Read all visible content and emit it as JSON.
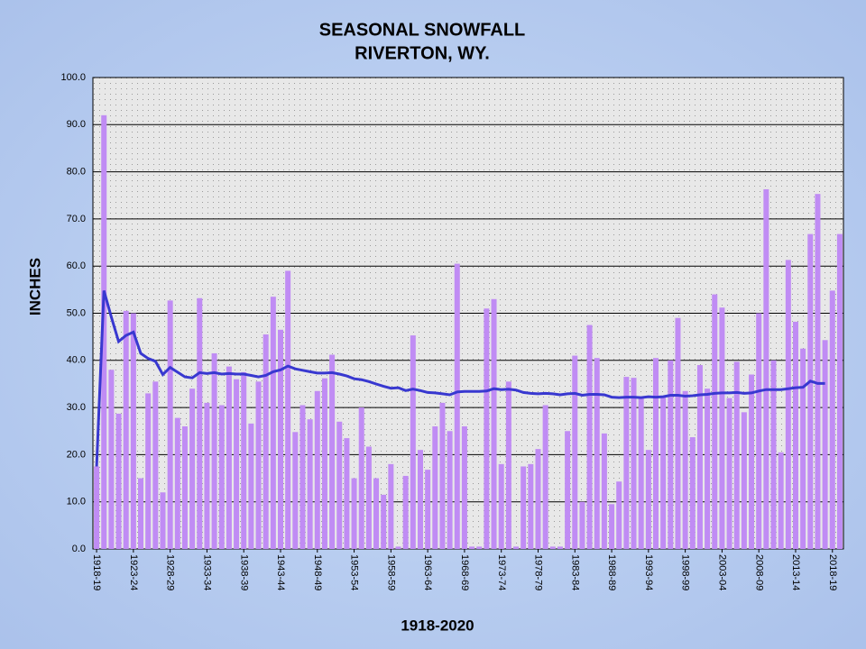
{
  "chart_data": {
    "type": "bar",
    "title": "SEASONAL SNOWFALL",
    "subtitle": "RIVERTON, WY.",
    "y_label": "INCHES",
    "x_label": "1918-2020",
    "categories": [
      "1918-19",
      null,
      null,
      null,
      null,
      "1923-24",
      null,
      null,
      null,
      null,
      "1928-29",
      null,
      null,
      null,
      null,
      "1933-34",
      null,
      null,
      null,
      null,
      "1938-39",
      null,
      null,
      null,
      null,
      "1943-44",
      null,
      null,
      null,
      null,
      "1948-49",
      null,
      null,
      null,
      null,
      "1953-54",
      null,
      null,
      null,
      null,
      "1958-59",
      null,
      null,
      null,
      null,
      "1963-64",
      null,
      null,
      null,
      null,
      "1968-69",
      null,
      null,
      null,
      null,
      "1973-74",
      null,
      null,
      null,
      null,
      "1978-79",
      null,
      null,
      null,
      null,
      "1983-84",
      null,
      null,
      null,
      null,
      "1988-89",
      null,
      null,
      null,
      null,
      "1993-94",
      null,
      null,
      null,
      null,
      "1998-99",
      null,
      null,
      null,
      null,
      "2003-04",
      null,
      null,
      null,
      null,
      "2008-09",
      null,
      null,
      null,
      null,
      "2013-14",
      null,
      null,
      null,
      null,
      "2018-19",
      null
    ],
    "series": [
      {
        "type": "bar",
        "color": "#c08cf4",
        "values": [
          17.5,
          92,
          38,
          28.7,
          50.5,
          50,
          15,
          33,
          35.5,
          12,
          52.7,
          27.8,
          26,
          34,
          53.2,
          31,
          41.5,
          30.5,
          38.7,
          36,
          37.5,
          26.6,
          35.5,
          45.5,
          53.5,
          46.5,
          59,
          24.8,
          30.5,
          27.5,
          33.5,
          36.2,
          41.2,
          27,
          23.5,
          15,
          30,
          21.7,
          15,
          11.5,
          18,
          0.5,
          15.5,
          45.3,
          21,
          16.8,
          26,
          31,
          25,
          60.5,
          26,
          0.5,
          0.5,
          51,
          53,
          18,
          35.5,
          0.5,
          17.5,
          18,
          21.2,
          30.5,
          0.5,
          0.5,
          25,
          41,
          10,
          47.5,
          40.5,
          24.5,
          9.5,
          14.3,
          36.5,
          36.3,
          32,
          21,
          40.5,
          32.5,
          40,
          49,
          33.5,
          23.7,
          39,
          34,
          54,
          51.2,
          32,
          39.7,
          29,
          37,
          50,
          76.3,
          40,
          20.5,
          61.3,
          48.2,
          42.5,
          66.8,
          75.3,
          44.3,
          54.8,
          66.8
        ]
      },
      {
        "type": "line",
        "color": "#3838d0",
        "values": [
          17.5,
          54.8,
          49.2,
          44,
          45.3,
          46,
          41.5,
          40.4,
          39.8,
          37,
          38.5,
          37.5,
          36.5,
          36.3,
          37.4,
          37.2,
          37.4,
          37.1,
          37.2,
          37.1,
          37.1,
          36.8,
          36.5,
          36.8,
          37.6,
          38,
          38.8,
          38.2,
          37.9,
          37.6,
          37.3,
          37.3,
          37.4,
          37.1,
          36.7,
          36.1,
          35.9,
          35.5,
          35,
          34.5,
          34.1,
          34.2,
          33.6,
          33.9,
          33.6,
          33.2,
          33.1,
          32.9,
          32.7,
          33.3,
          33.4,
          33.4,
          33.4,
          33.5,
          34,
          33.8,
          33.9,
          33.7,
          33.2,
          33,
          32.9,
          33,
          32.9,
          32.7,
          32.9,
          33,
          32.6,
          32.8,
          32.8,
          32.7,
          32.2,
          32.1,
          32.2,
          32.2,
          32.1,
          32.3,
          32.2,
          32.3,
          32.6,
          32.6,
          32.4,
          32.5,
          32.7,
          32.8,
          33,
          33.1,
          33.1,
          33.2,
          33,
          33.1,
          33.5,
          33.8,
          33.8,
          33.8,
          34,
          34.2,
          34.3,
          35.6,
          35.1,
          35.1,
          null,
          null
        ]
      }
    ],
    "ylim": [
      0,
      100
    ],
    "yticks": [
      {
        "value": 0,
        "label": "0.0"
      },
      {
        "value": 10,
        "label": "10.0"
      },
      {
        "value": 20,
        "label": "20.0"
      },
      {
        "value": 30,
        "label": "30.0"
      },
      {
        "value": 40,
        "label": "40.0"
      },
      {
        "value": 50,
        "label": "50.0"
      },
      {
        "value": 60,
        "label": "60.0"
      },
      {
        "value": 70,
        "label": "70.0"
      },
      {
        "value": 80,
        "label": "80.0"
      },
      {
        "value": 90,
        "label": "90.0"
      },
      {
        "value": 100,
        "label": "100.0"
      }
    ],
    "grid": true
  }
}
